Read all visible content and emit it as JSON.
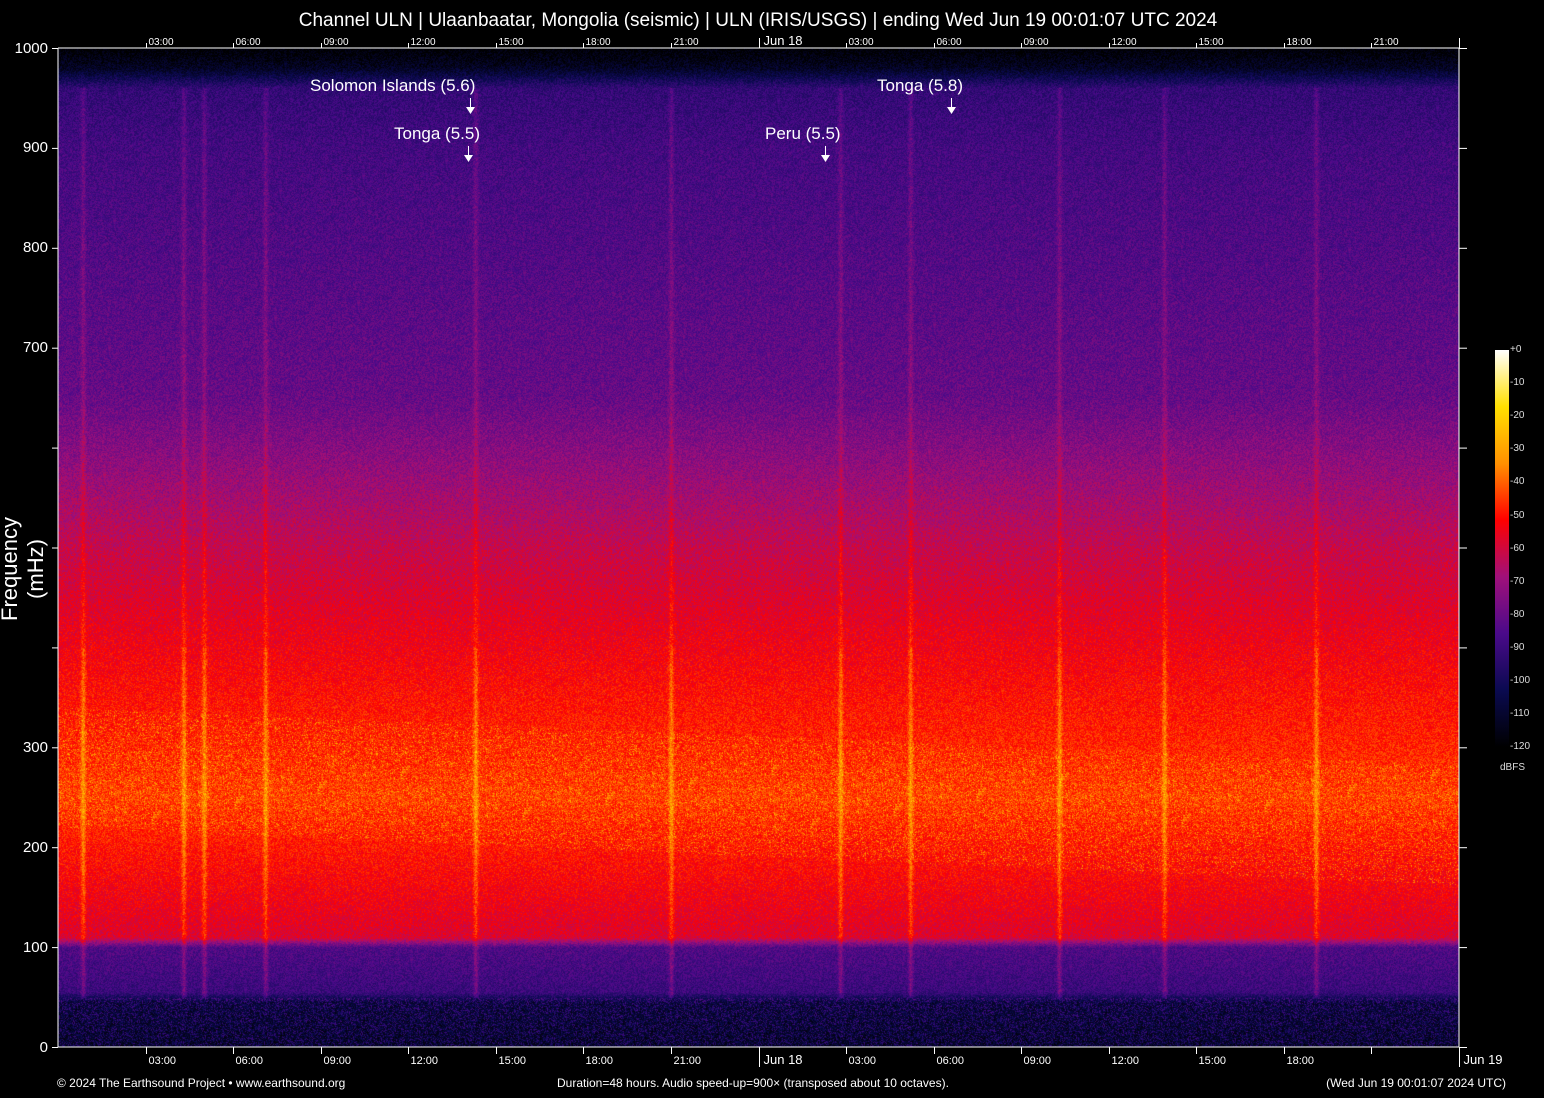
{
  "title": "Channel ULN | Ulaanbaatar, Mongolia (seismic) | ULN (IRIS/USGS) | ending Wed Jun 19 00:01:07 UTC 2024",
  "chart_data": {
    "type": "heatmap",
    "ylabel": "Frequency (mHz)",
    "ylim": [
      0,
      1000
    ],
    "y_ticks": [
      0,
      100,
      200,
      300,
      400,
      500,
      600,
      700,
      800,
      900,
      1000
    ],
    "y_tick_labels": [
      "0",
      "100",
      "200",
      "300",
      "",
      "",
      "",
      "700",
      "800",
      "900",
      "1000"
    ],
    "duration_hours": 48,
    "top_x_labels": [
      "03:00",
      "06:00",
      "09:00",
      "12:00",
      "15:00",
      "18:00",
      "21:00",
      "Jun 18",
      "03:00",
      "06:00",
      "09:00",
      "12:00",
      "15:00",
      "18:00",
      "21:00"
    ],
    "bottom_x_labels": [
      "03:00",
      "06:00",
      "09:00",
      "12:00",
      "15:00",
      "18:00",
      "21:00",
      "Jun 18",
      "03:00",
      "06:00",
      "09:00",
      "12:00",
      "15:00",
      "18:00",
      "",
      "Jun 19"
    ],
    "annotations": [
      {
        "label": "Solomon Islands (5.6)",
        "hour": 14.2
      },
      {
        "label": "Tonga (5.5)",
        "hour": 14.0
      },
      {
        "label": "Peru (5.5)",
        "hour": 26.3
      },
      {
        "label": "Tonga (5.8)",
        "hour": 30.6
      }
    ],
    "colorbar": {
      "label": "dBFS",
      "range": [
        -120,
        0
      ],
      "ticks": [
        "+0",
        "-10",
        "-20",
        "-30",
        "-40",
        "-50",
        "-60",
        "-70",
        "-80",
        "-90",
        "-100",
        "-110",
        "-120"
      ],
      "colors": [
        "#000000",
        "#0a0a50",
        "#4a0a8a",
        "#a0107a",
        "#ff0000",
        "#ff9000",
        "#ffe000",
        "#ffffff"
      ]
    },
    "band_levels_dbfs": [
      {
        "mhz": 0,
        "db": -112
      },
      {
        "mhz": 45,
        "db": -108
      },
      {
        "mhz": 55,
        "db": -90
      },
      {
        "mhz": 100,
        "db": -85
      },
      {
        "mhz": 110,
        "db": -58
      },
      {
        "mhz": 250,
        "db": -44
      },
      {
        "mhz": 350,
        "db": -50
      },
      {
        "mhz": 500,
        "db": -62
      },
      {
        "mhz": 650,
        "db": -80
      },
      {
        "mhz": 900,
        "db": -88
      },
      {
        "mhz": 960,
        "db": -92
      },
      {
        "mhz": 980,
        "db": -112
      },
      {
        "mhz": 1000,
        "db": -120
      }
    ],
    "vertical_streak_hours": [
      0.85,
      4.3,
      5.0,
      7.1,
      14.3,
      21.0,
      26.8,
      29.2,
      34.3,
      37.9,
      43.1
    ]
  },
  "footer": {
    "left": "© 2024 The Earthsound Project • www.earthsound.org",
    "center": "Duration=48 hours. Audio speed-up=900× (transposed about 10 octaves).",
    "right": "(Wed Jun 19 00:01:07 2024 UTC)"
  }
}
